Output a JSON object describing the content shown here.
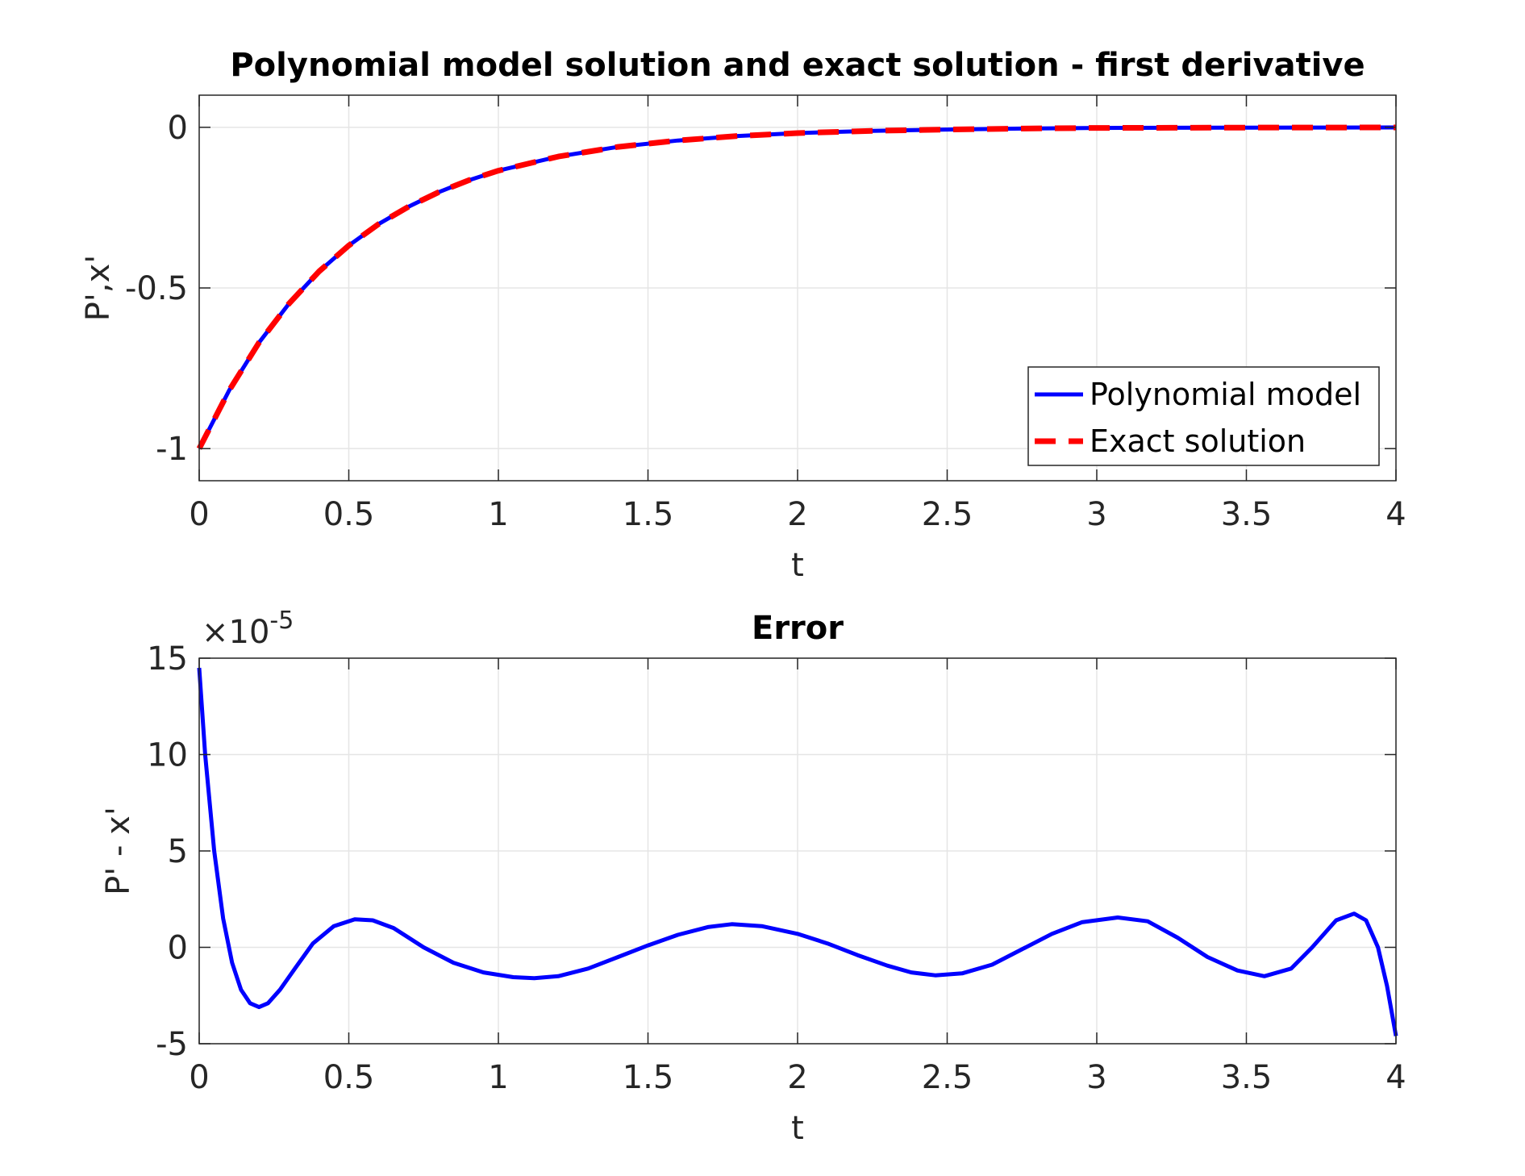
{
  "chart_data": [
    {
      "type": "line",
      "title": "Polynomial model solution and exact solution - first derivative",
      "xlabel": "t",
      "ylabel": "P',x'",
      "xlim": [
        0,
        4
      ],
      "ylim": [
        -1.1,
        0.1
      ],
      "xticks": [
        0,
        0.5,
        1,
        1.5,
        2,
        2.5,
        3,
        3.5,
        4
      ],
      "xtick_labels": [
        "0",
        "0.5",
        "1",
        "1.5",
        "2",
        "2.5",
        "3",
        "3.5",
        "4"
      ],
      "yticks": [
        -1,
        -0.5,
        0
      ],
      "ytick_labels": [
        "-1",
        "-0.5",
        "0"
      ],
      "grid": true,
      "legend_location": "bottom-right",
      "series": [
        {
          "name": "Polynomial model",
          "color": "#0000ff",
          "style": "solid",
          "x": [
            0,
            0.1,
            0.2,
            0.3,
            0.4,
            0.5,
            0.6,
            0.7,
            0.8,
            0.9,
            1.0,
            1.2,
            1.4,
            1.6,
            1.8,
            2.0,
            2.25,
            2.5,
            2.75,
            3.0,
            3.25,
            3.5,
            3.75,
            4.0
          ],
          "y": [
            -1,
            -0.819,
            -0.67,
            -0.549,
            -0.449,
            -0.368,
            -0.301,
            -0.247,
            -0.202,
            -0.165,
            -0.135,
            -0.091,
            -0.061,
            -0.041,
            -0.027,
            -0.018,
            -0.011,
            -0.007,
            -0.004,
            -0.002,
            -0.0015,
            -0.001,
            -0.0006,
            -0.0003
          ]
        },
        {
          "name": "Exact solution",
          "color": "#ff0000",
          "style": "dashed",
          "x": [
            0,
            0.1,
            0.2,
            0.3,
            0.4,
            0.5,
            0.6,
            0.7,
            0.8,
            0.9,
            1.0,
            1.2,
            1.4,
            1.6,
            1.8,
            2.0,
            2.25,
            2.5,
            2.75,
            3.0,
            3.25,
            3.5,
            3.75,
            4.0
          ],
          "y": [
            -1,
            -0.819,
            -0.67,
            -0.549,
            -0.449,
            -0.368,
            -0.301,
            -0.247,
            -0.202,
            -0.165,
            -0.135,
            -0.091,
            -0.061,
            -0.041,
            -0.027,
            -0.018,
            -0.011,
            -0.007,
            -0.004,
            -0.002,
            -0.0015,
            -0.001,
            -0.0006,
            -0.0003
          ]
        }
      ]
    },
    {
      "type": "line",
      "title": "Error",
      "xlabel": "t",
      "ylabel": "P' - x'",
      "y_exponent_label": "×10",
      "y_exponent_power": "-5",
      "xlim": [
        0,
        4
      ],
      "ylim": [
        -5,
        15
      ],
      "xticks": [
        0,
        0.5,
        1,
        1.5,
        2,
        2.5,
        3,
        3.5,
        4
      ],
      "xtick_labels": [
        "0",
        "0.5",
        "1",
        "1.5",
        "2",
        "2.5",
        "3",
        "3.5",
        "4"
      ],
      "yticks": [
        -5,
        0,
        5,
        10,
        15
      ],
      "ytick_labels": [
        "-5",
        "0",
        "5",
        "10",
        "15"
      ],
      "grid": true,
      "series": [
        {
          "name": "Error",
          "color": "#0000ff",
          "style": "solid",
          "x": [
            0,
            0.02,
            0.05,
            0.08,
            0.11,
            0.14,
            0.17,
            0.2,
            0.23,
            0.27,
            0.32,
            0.38,
            0.45,
            0.52,
            0.58,
            0.65,
            0.75,
            0.85,
            0.95,
            1.05,
            1.12,
            1.2,
            1.3,
            1.4,
            1.5,
            1.6,
            1.7,
            1.78,
            1.88,
            2.0,
            2.1,
            2.2,
            2.3,
            2.38,
            2.46,
            2.55,
            2.65,
            2.75,
            2.85,
            2.95,
            3.07,
            3.17,
            3.27,
            3.37,
            3.47,
            3.56,
            3.65,
            3.72,
            3.8,
            3.86,
            3.9,
            3.94,
            3.97,
            4.0
          ],
          "y": [
            14.5,
            10.0,
            5.0,
            1.5,
            -0.8,
            -2.2,
            -2.9,
            -3.1,
            -2.9,
            -2.2,
            -1.1,
            0.2,
            1.1,
            1.45,
            1.4,
            1.0,
            0.0,
            -0.8,
            -1.3,
            -1.55,
            -1.6,
            -1.5,
            -1.1,
            -0.5,
            0.1,
            0.65,
            1.05,
            1.2,
            1.1,
            0.7,
            0.2,
            -0.4,
            -0.95,
            -1.3,
            -1.45,
            -1.35,
            -0.9,
            -0.1,
            0.7,
            1.3,
            1.55,
            1.35,
            0.5,
            -0.5,
            -1.2,
            -1.5,
            -1.1,
            0.0,
            1.4,
            1.75,
            1.4,
            0.0,
            -2.0,
            -4.6
          ]
        }
      ]
    }
  ]
}
